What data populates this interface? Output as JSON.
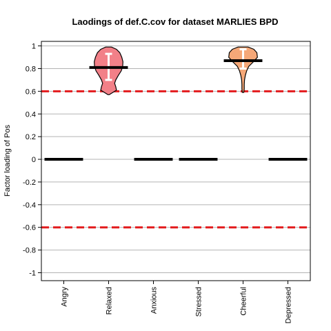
{
  "chart_data": {
    "type": "violin",
    "title": "Laodings of def.C.cov for dataset MARLIES BPD",
    "xlabel": "",
    "ylabel": "Factor loading of Pos",
    "ylim": [
      -1.07,
      1.04
    ],
    "yticks": [
      1,
      0.8,
      0.6,
      0.4,
      0.2,
      0,
      -0.2,
      -0.4,
      -0.6,
      -0.8,
      -1
    ],
    "ytick_labels": [
      "1",
      "0.8",
      "0.6",
      "0.4",
      "0.2",
      "0",
      "-0.2",
      "-0.4",
      "-0.6",
      "-0.8",
      "-1"
    ],
    "grid": true,
    "threshold_lines": [
      0.6,
      -0.6
    ],
    "threshold_color": "#e31a1c",
    "categories": [
      "Angry",
      "Relaxed",
      "Anxious",
      "Stressed",
      "Cheerful",
      "Depressed"
    ],
    "estimates": [
      0,
      0.81,
      0,
      0,
      0.87,
      0
    ],
    "violins": [
      null,
      {
        "color": "#f28088",
        "profile": [
          [
            0.57,
            0.05
          ],
          [
            0.59,
            0.3
          ],
          [
            0.61,
            0.55
          ],
          [
            0.64,
            0.5
          ],
          [
            0.67,
            0.42
          ],
          [
            0.7,
            0.5
          ],
          [
            0.74,
            0.68
          ],
          [
            0.78,
            0.88
          ],
          [
            0.82,
            0.98
          ],
          [
            0.86,
            1.0
          ],
          [
            0.9,
            0.92
          ],
          [
            0.94,
            0.78
          ],
          [
            0.97,
            0.55
          ],
          [
            0.99,
            0.2
          ]
        ],
        "interval": [
          0.7,
          0.93
        ]
      },
      null,
      null,
      {
        "color": "#f5a878",
        "profile": [
          [
            0.59,
            0.05
          ],
          [
            0.62,
            0.08
          ],
          [
            0.66,
            0.08
          ],
          [
            0.7,
            0.1
          ],
          [
            0.74,
            0.16
          ],
          [
            0.78,
            0.25
          ],
          [
            0.82,
            0.4
          ],
          [
            0.86,
            0.72
          ],
          [
            0.9,
            1.0
          ],
          [
            0.94,
            0.96
          ],
          [
            0.97,
            0.75
          ],
          [
            0.99,
            0.35
          ]
        ],
        "interval": [
          0.8,
          0.97
        ]
      },
      null
    ]
  }
}
